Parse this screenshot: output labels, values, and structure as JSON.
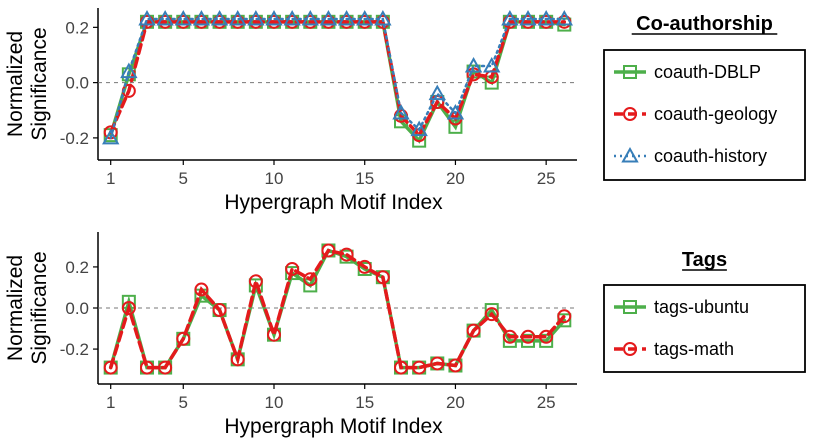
{
  "chart_data": [
    {
      "type": "line",
      "xlabel": "Hypergraph Motif Index",
      "ylabel_lines": [
        "Normalized",
        "Significance"
      ],
      "xlim": [
        0.3,
        26.7
      ],
      "ylim": [
        -0.28,
        0.27
      ],
      "xticks": [
        1,
        5,
        10,
        15,
        20,
        25
      ],
      "yticks": [
        0.2,
        0.0,
        -0.2
      ],
      "ytick_labels": [
        "0.2",
        "0.0",
        "-0.2"
      ],
      "reference_line": 0,
      "legend_title": "Co-authorship",
      "x": [
        1,
        2,
        3,
        4,
        5,
        6,
        7,
        8,
        9,
        10,
        11,
        12,
        13,
        14,
        15,
        16,
        17,
        18,
        19,
        20,
        21,
        22,
        23,
        24,
        25,
        26
      ],
      "series": [
        {
          "name": "coauth-DBLP",
          "color": "#4daf4a",
          "marker": "square",
          "line": "solid",
          "values": [
            -0.19,
            0.03,
            0.22,
            0.22,
            0.22,
            0.22,
            0.22,
            0.22,
            0.22,
            0.22,
            0.22,
            0.22,
            0.22,
            0.22,
            0.22,
            0.22,
            -0.14,
            -0.21,
            -0.07,
            -0.16,
            0.04,
            0.0,
            0.22,
            0.22,
            0.22,
            0.21
          ]
        },
        {
          "name": "coauth-geology",
          "color": "#e41a1c",
          "marker": "circle",
          "line": "dashed",
          "values": [
            -0.18,
            -0.03,
            0.22,
            0.22,
            0.22,
            0.22,
            0.22,
            0.22,
            0.22,
            0.22,
            0.22,
            0.22,
            0.22,
            0.22,
            0.22,
            0.22,
            -0.12,
            -0.19,
            -0.07,
            -0.13,
            0.03,
            0.02,
            0.22,
            0.22,
            0.22,
            0.22
          ]
        },
        {
          "name": "coauth-history",
          "color": "#377eb8",
          "marker": "triangle",
          "line": "dotted",
          "values": [
            -0.2,
            0.04,
            0.23,
            0.23,
            0.23,
            0.23,
            0.23,
            0.23,
            0.23,
            0.23,
            0.23,
            0.23,
            0.23,
            0.23,
            0.23,
            0.23,
            -0.11,
            -0.17,
            -0.04,
            -0.11,
            0.06,
            0.06,
            0.23,
            0.23,
            0.23,
            0.23
          ]
        }
      ]
    },
    {
      "type": "line",
      "xlabel": "Hypergraph Motif Index",
      "ylabel_lines": [
        "Normalized",
        "Significance"
      ],
      "xlim": [
        0.3,
        26.7
      ],
      "ylim": [
        -0.37,
        0.37
      ],
      "xticks": [
        1,
        5,
        10,
        15,
        20,
        25
      ],
      "yticks": [
        0.2,
        0.0,
        -0.2
      ],
      "ytick_labels": [
        "0.2",
        "0.0",
        "-0.2"
      ],
      "reference_line": 0,
      "legend_title": "Tags",
      "x": [
        1,
        2,
        3,
        4,
        5,
        6,
        7,
        8,
        9,
        10,
        11,
        12,
        13,
        14,
        15,
        16,
        17,
        18,
        19,
        20,
        21,
        22,
        23,
        24,
        25,
        26
      ],
      "series": [
        {
          "name": "tags-ubuntu",
          "color": "#4daf4a",
          "marker": "square",
          "line": "solid",
          "values": [
            -0.29,
            0.03,
            -0.29,
            -0.29,
            -0.15,
            0.06,
            -0.01,
            -0.25,
            0.11,
            -0.13,
            0.17,
            0.11,
            0.28,
            0.25,
            0.19,
            0.15,
            -0.29,
            -0.29,
            -0.27,
            -0.28,
            -0.11,
            -0.01,
            -0.16,
            -0.16,
            -0.16,
            -0.06
          ]
        },
        {
          "name": "tags-math",
          "color": "#e41a1c",
          "marker": "circle",
          "line": "dashed",
          "values": [
            -0.29,
            0.0,
            -0.29,
            -0.29,
            -0.15,
            0.09,
            -0.01,
            -0.25,
            0.13,
            -0.13,
            0.19,
            0.14,
            0.28,
            0.26,
            0.2,
            0.15,
            -0.29,
            -0.29,
            -0.27,
            -0.28,
            -0.11,
            -0.03,
            -0.14,
            -0.14,
            -0.14,
            -0.04
          ]
        }
      ]
    }
  ]
}
